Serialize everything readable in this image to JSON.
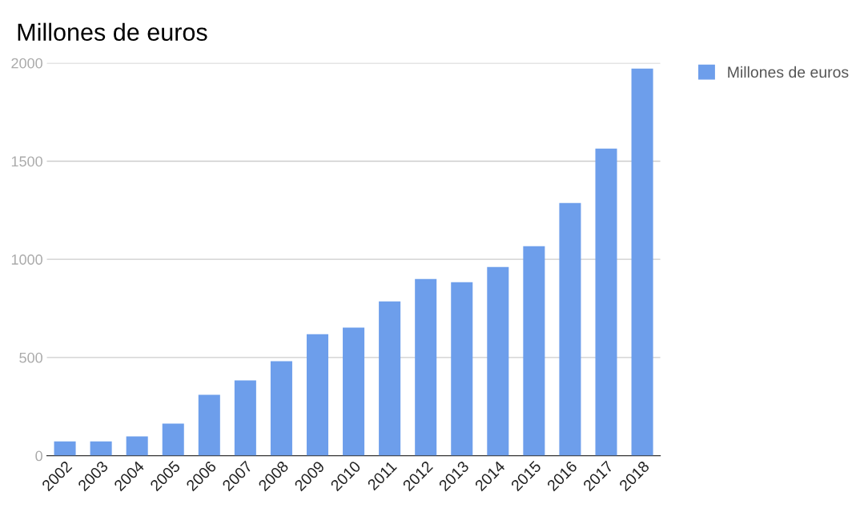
{
  "chart_data": {
    "type": "bar",
    "title": "Millones de euros",
    "categories": [
      "2002",
      "2003",
      "2004",
      "2005",
      "2006",
      "2007",
      "2008",
      "2009",
      "2010",
      "2011",
      "2012",
      "2013",
      "2014",
      "2015",
      "2016",
      "2017",
      "2018"
    ],
    "series": [
      {
        "name": "Millones de euros",
        "color": "#6d9eeb",
        "values": [
          73,
          73,
          98,
          163,
          310,
          383,
          481,
          619,
          652,
          786,
          900,
          884,
          961,
          1067,
          1287,
          1564,
          1971
        ]
      }
    ],
    "ylim": [
      0,
      2000
    ],
    "yticks": [
      0,
      500,
      1000,
      1500,
      2000
    ],
    "grid": "y",
    "legend": "top right"
  }
}
